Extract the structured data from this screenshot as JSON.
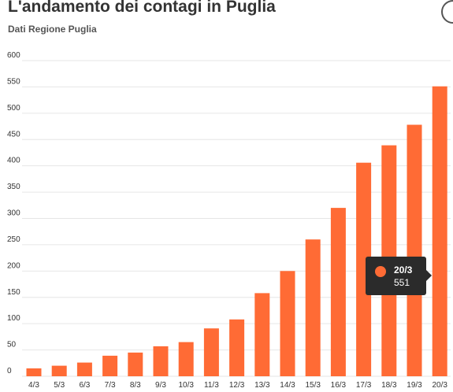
{
  "header": {
    "title": "L'andamento dei contagi in Puglia",
    "subtitle": "Dati Regione Puglia"
  },
  "tooltip": {
    "label": "20/3",
    "value": "551"
  },
  "chart_data": {
    "type": "bar",
    "title": "L'andamento dei contagi in Puglia",
    "subtitle": "Dati Regione Puglia",
    "xlabel": "",
    "ylabel": "",
    "categories": [
      "4/3",
      "5/3",
      "6/3",
      "7/3",
      "8/3",
      "9/3",
      "10/3",
      "11/3",
      "12/3",
      "13/3",
      "14/3",
      "15/3",
      "16/3",
      "17/3",
      "18/3",
      "19/3",
      "20/3"
    ],
    "values": [
      15,
      20,
      26,
      39,
      45,
      57,
      65,
      91,
      108,
      158,
      200,
      260,
      320,
      406,
      439,
      478,
      551
    ],
    "yticks": [
      "0",
      "50",
      "100",
      "150",
      "200",
      "250",
      "300",
      "350",
      "400",
      "450",
      "500",
      "550",
      "600"
    ],
    "ylim": [
      0,
      600
    ],
    "grid": true,
    "legend": "none",
    "bar_color": "#ff6b35",
    "grid_color": "#e6e6e6"
  }
}
